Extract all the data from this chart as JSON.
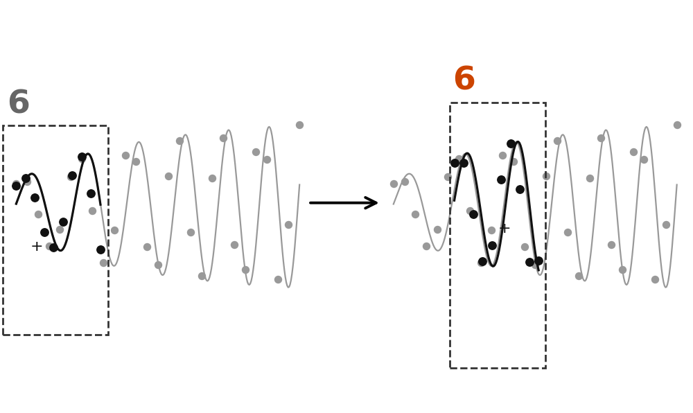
{
  "bg_color": "#ffffff",
  "arrow_color": "#000000",
  "gray_line_color": "#999999",
  "gray_dot_color": "#999999",
  "black_line_color": "#111111",
  "black_dot_color": "#111111",
  "dashed_box_color": "#333333",
  "label_color_left": "#666666",
  "label_color_right": "#cc4400",
  "label_text": "6",
  "label_fontsize": 34,
  "plus_fontsize": 16,
  "figsize": [
    10.0,
    5.96
  ],
  "dpi": 100
}
